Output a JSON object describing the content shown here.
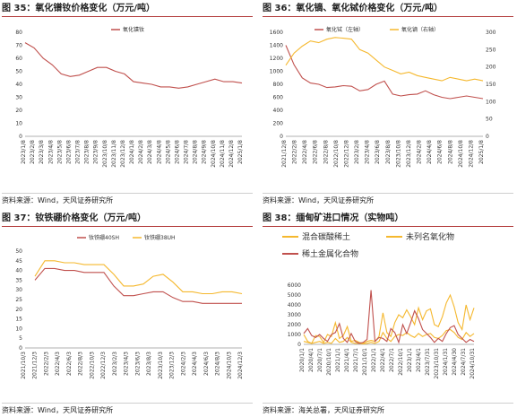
{
  "panels": [
    {
      "title": "图 35：氧化镨钕价格变化（万元/吨）",
      "source": "资料来源：Wind，天风证券研究所"
    },
    {
      "title": "图 36：氧化镝、氧化铽价格变化（万元/吨）",
      "source": "资料来源：Wind，天风证券研究所"
    },
    {
      "title": "图 37：钕铁硼价格变化（万元/吨）",
      "source": "资料来源：Wind，天风证券研究所"
    },
    {
      "title": "图 38：缅甸矿进口情况（实物吨）",
      "source": "资料来源：海关总署，天风证券研究所"
    }
  ],
  "colors": {
    "red": "#c0504d",
    "orange": "#f5b82e",
    "rule": "#b23a3a"
  },
  "chart_data": [
    {
      "type": "line",
      "ylim": [
        0,
        80
      ],
      "yticks": [
        0,
        10,
        20,
        30,
        40,
        50,
        60,
        70,
        80
      ],
      "xticks": [
        "2023/1/8",
        "2023/2/8",
        "2023/3/8",
        "2023/4/8",
        "2023/5/8",
        "2023/6/8",
        "2023/7/8",
        "2023/8/8",
        "2023/9/8",
        "2023/10/8",
        "2023/11/8",
        "2023/12/8",
        "2024/1/8",
        "2024/2/8",
        "2024/3/8",
        "2024/4/8",
        "2024/5/8",
        "2024/6/8",
        "2024/7/8",
        "2024/8/8",
        "2024/9/8",
        "2024/10/8",
        "2024/11/8",
        "2024/12/8",
        "2025/1/8"
      ],
      "series": [
        {
          "name": "氧化镨钕",
          "color": "#c0504d",
          "values": [
            72,
            68,
            60,
            55,
            48,
            46,
            47,
            50,
            53,
            53,
            50,
            48,
            42,
            41,
            40,
            38,
            38,
            37,
            38,
            40,
            42,
            44,
            42,
            42,
            41
          ]
        }
      ]
    },
    {
      "type": "line",
      "ylim": [
        0,
        1600
      ],
      "yticks": [
        0,
        200,
        400,
        600,
        800,
        1000,
        1200,
        1400,
        1600
      ],
      "y2lim": [
        0,
        300
      ],
      "y2ticks": [
        0,
        50,
        100,
        150,
        200,
        250,
        300
      ],
      "xticks": [
        "2021/12/8",
        "2022/2/8",
        "2022/4/8",
        "2022/6/8",
        "2022/8/8",
        "2022/10/8",
        "2022/12/8",
        "2023/2/8",
        "2023/4/8",
        "2023/6/8",
        "2023/8/8",
        "2023/10/8",
        "2023/12/8",
        "2024/2/8",
        "2024/4/8",
        "2024/6/8",
        "2024/8/8",
        "2024/10/8",
        "2024/12/8",
        "2025/1/8"
      ],
      "series": [
        {
          "name": "氧化铽（左轴）",
          "axis": "left",
          "color": "#c0504d",
          "values": [
            1400,
            1100,
            900,
            820,
            800,
            750,
            760,
            780,
            770,
            700,
            720,
            800,
            850,
            650,
            620,
            640,
            650,
            700,
            640,
            600,
            580,
            600,
            620,
            600,
            580
          ]
        },
        {
          "name": "氧化镝（右轴）",
          "axis": "right",
          "color": "#f5b82e",
          "values": [
            205,
            240,
            260,
            275,
            270,
            280,
            285,
            283,
            280,
            250,
            240,
            220,
            200,
            190,
            180,
            185,
            175,
            170,
            165,
            160,
            170,
            165,
            160,
            165,
            160
          ]
        }
      ]
    },
    {
      "type": "line",
      "ylim": [
        0,
        50
      ],
      "yticks": [
        0,
        5,
        10,
        15,
        20,
        25,
        30,
        35,
        40,
        45,
        50
      ],
      "xticks": [
        "2021/10/3",
        "2021/12/3",
        "2022/2/3",
        "2022/4/3",
        "2022/6/3",
        "2022/8/3",
        "2022/10/3",
        "2022/12/3",
        "2023/2/3",
        "2023/4/3",
        "2023/6/3",
        "2023/8/3",
        "2023/10/3",
        "2023/12/3",
        "2024/2/3",
        "2024/4/3",
        "2024/6/3",
        "2024/8/3",
        "2024/10/3",
        "2024/12/3"
      ],
      "series": [
        {
          "name": "钕铁硼40SH",
          "color": "#c0504d",
          "values": [
            null,
            35,
            41,
            41,
            40,
            40,
            39,
            39,
            39,
            32,
            27,
            27,
            28,
            29,
            29,
            26,
            24,
            24,
            23,
            23,
            23,
            23,
            23
          ]
        },
        {
          "name": "钕铁硼38UH",
          "color": "#f5b82e",
          "values": [
            null,
            37,
            45,
            45,
            44,
            44,
            43,
            43,
            43,
            38,
            32,
            32,
            33,
            37,
            38,
            34,
            29,
            29,
            28,
            28,
            29,
            29,
            28
          ]
        }
      ]
    },
    {
      "type": "line",
      "ylim": [
        0,
        6000
      ],
      "yticks": [
        0,
        1000,
        2000,
        3000,
        4000,
        5000,
        6000
      ],
      "xticks": [
        "2020/1/1",
        "2020/4/1",
        "2020/7/1",
        "2020/10/1",
        "2021/1/1",
        "2021/4/1",
        "2021/7/1",
        "2021/10/1",
        "2022/1/1",
        "2022/4/1",
        "2022/7/1",
        "2022/10/1",
        "2023/1/1",
        "2023/4/1",
        "2023/7/31",
        "2023/10/31",
        "2024/1/31",
        "2024/4/30",
        "2024/7/31",
        "2024/10/31"
      ],
      "series": [
        {
          "name": "混合碳酸稀土",
          "color": "#f5b82e",
          "values": [
            1000,
            300,
            100,
            900,
            800,
            200,
            1000,
            800,
            2200,
            600,
            900,
            1800,
            300,
            400,
            200,
            100,
            300,
            400,
            300,
            800,
            3200,
            1200,
            800,
            2200,
            3000,
            2700,
            3500,
            2800,
            2000,
            3700,
            2500,
            3400,
            3600,
            2000,
            1800,
            2800,
            4200,
            5000,
            3800,
            2200,
            1500,
            4000,
            2500,
            3700
          ]
        },
        {
          "name": "未列名氧化物",
          "color": "#f5b82e",
          "values": [
            300,
            200,
            100,
            200,
            300,
            100,
            200,
            100,
            600,
            200,
            300,
            700,
            200,
            100,
            100,
            50,
            100,
            200,
            100,
            300,
            1200,
            600,
            300,
            800,
            1000,
            900,
            1200,
            900,
            700,
            1100,
            800,
            1000,
            1100,
            700,
            600,
            900,
            1400,
            1500,
            1200,
            700,
            500,
            1200,
            800,
            1100
          ]
        },
        {
          "name": "稀土金属化合物",
          "color": "#c0504d",
          "values": [
            1100,
            1600,
            900,
            700,
            1000,
            600,
            300,
            1000,
            1200,
            2100,
            600,
            200,
            1100,
            300,
            100,
            200,
            500,
            5500,
            300,
            700,
            600,
            300,
            1600,
            1200,
            200,
            2000,
            1100,
            2200,
            3400,
            2600,
            1500,
            1100,
            700,
            200,
            600,
            300,
            1100,
            1700,
            1900,
            1000,
            600,
            200,
            500,
            300
          ]
        }
      ]
    }
  ]
}
